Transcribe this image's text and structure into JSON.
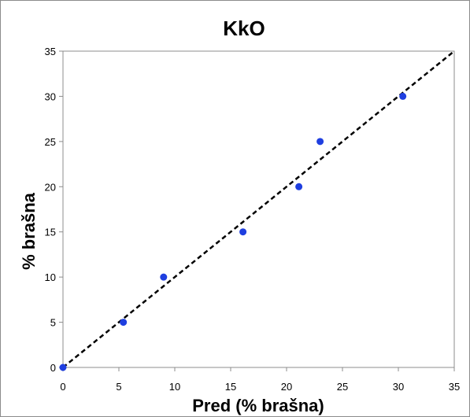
{
  "chart_data": {
    "type": "scatter",
    "title": "KkO",
    "xlabel": "Pred (% brašna)",
    "ylabel": "% brašna",
    "xlim": [
      0,
      35
    ],
    "ylim": [
      0,
      35
    ],
    "xticks": [
      0,
      5,
      10,
      15,
      20,
      25,
      30,
      35
    ],
    "yticks": [
      0,
      5,
      10,
      15,
      20,
      25,
      30,
      35
    ],
    "grid": false,
    "legend": "none",
    "series": [
      {
        "color": "#1f3fe0",
        "points": [
          {
            "x": 0,
            "y": 0
          },
          {
            "x": 5.4,
            "y": 5
          },
          {
            "x": 9.0,
            "y": 10
          },
          {
            "x": 16.1,
            "y": 15
          },
          {
            "x": 21.1,
            "y": 20
          },
          {
            "x": 23.0,
            "y": 25
          },
          {
            "x": 30.4,
            "y": 30
          }
        ]
      }
    ],
    "reference_line": {
      "from": [
        0,
        0
      ],
      "to": [
        35,
        35
      ],
      "style": "dashed",
      "color": "#000000"
    }
  }
}
